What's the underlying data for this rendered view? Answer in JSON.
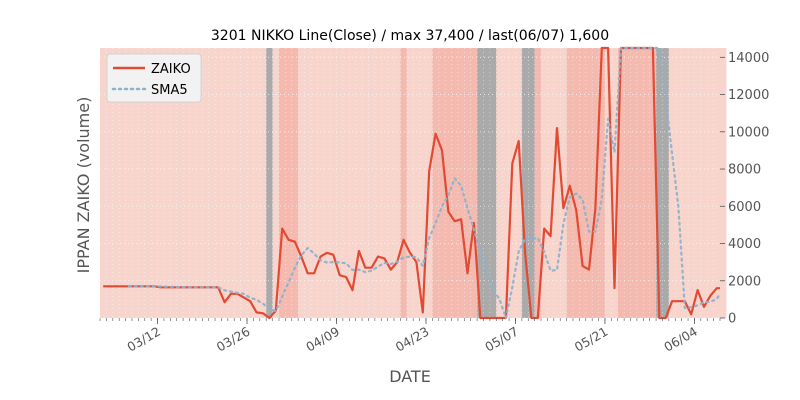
{
  "chart_data": {
    "type": "line",
    "title": "3201 NIKKO Line(Close) / max 37,400 / last(06/07) 1,600",
    "xlabel": "DATE",
    "ylabel": "IPPAN ZAIKO (volume)",
    "ylim": [
      0,
      14500
    ],
    "y_ticks": [
      0,
      2000,
      4000,
      6000,
      8000,
      10000,
      12000,
      14000
    ],
    "y_tick_labels": [
      "0",
      "2000",
      "4000",
      "6000",
      "8000",
      "10000",
      "12000",
      "14000"
    ],
    "y_axis_side": "right",
    "x_ticks": [
      {
        "label": "03/12",
        "day": 9
      },
      {
        "label": "03/26",
        "day": 23
      },
      {
        "label": "04/09",
        "day": 37
      },
      {
        "label": "04/23",
        "day": 51
      },
      {
        "label": "05/07",
        "day": 65
      },
      {
        "label": "05/21",
        "day": 79
      },
      {
        "label": "06/04",
        "day": 93
      }
    ],
    "x_start_date": "03/03",
    "x_range_days": [
      0,
      97
    ],
    "grid": true,
    "legend_position": "top-left",
    "background": "#e5e5e5",
    "series": [
      {
        "name": "ZAIKO",
        "color": "#e24a33",
        "style": "solid",
        "points": [
          [
            0.5,
            1700
          ],
          [
            1.5,
            1700
          ],
          [
            2.5,
            1700
          ],
          [
            3.5,
            1700
          ],
          [
            4.5,
            1700
          ],
          [
            5.5,
            1700
          ],
          [
            6.5,
            1700
          ],
          [
            7.5,
            1700
          ],
          [
            8.5,
            1700
          ],
          [
            9.5,
            1650
          ],
          [
            10.5,
            1650
          ],
          [
            11.5,
            1650
          ],
          [
            12.5,
            1650
          ],
          [
            13.5,
            1650
          ],
          [
            14.5,
            1650
          ],
          [
            15.5,
            1650
          ],
          [
            16.5,
            1650
          ],
          [
            17.5,
            1650
          ],
          [
            18.5,
            1650
          ],
          [
            19.5,
            850
          ],
          [
            20.5,
            1300
          ],
          [
            21.5,
            1300
          ],
          [
            22.5,
            1100
          ],
          [
            23.5,
            900
          ],
          [
            24.5,
            300
          ],
          [
            25.5,
            250
          ],
          [
            26.5,
            0
          ],
          [
            27.5,
            400
          ],
          [
            28.5,
            4800
          ],
          [
            29.5,
            4200
          ],
          [
            30.5,
            4100
          ],
          [
            31.5,
            3300
          ],
          [
            32.5,
            2400
          ],
          [
            33.5,
            2400
          ],
          [
            34.5,
            3300
          ],
          [
            35.5,
            3500
          ],
          [
            36.5,
            3400
          ],
          [
            37.5,
            2300
          ],
          [
            38.5,
            2200
          ],
          [
            39.5,
            1500
          ],
          [
            40.5,
            3600
          ],
          [
            41.5,
            2700
          ],
          [
            42.5,
            2700
          ],
          [
            43.5,
            3300
          ],
          [
            44.5,
            3200
          ],
          [
            45.5,
            2600
          ],
          [
            46.5,
            3000
          ],
          [
            47.5,
            4200
          ],
          [
            48.5,
            3500
          ],
          [
            49.5,
            3000
          ],
          [
            50.5,
            300
          ],
          [
            51.5,
            7900
          ],
          [
            52.5,
            9900
          ],
          [
            53.5,
            9000
          ],
          [
            54.5,
            5700
          ],
          [
            55.5,
            5200
          ],
          [
            56.5,
            5300
          ],
          [
            57.5,
            2400
          ],
          [
            58.5,
            5100
          ],
          [
            59.5,
            0
          ],
          [
            60.5,
            0
          ],
          [
            61.5,
            0
          ],
          [
            62.5,
            0
          ],
          [
            63.5,
            0
          ],
          [
            64.5,
            8300
          ],
          [
            65.5,
            9500
          ],
          [
            66.5,
            3500
          ],
          [
            67.5,
            0
          ],
          [
            68.5,
            0
          ],
          [
            69.5,
            4800
          ],
          [
            70.5,
            4400
          ],
          [
            71.5,
            10200
          ],
          [
            72.5,
            5900
          ],
          [
            73.5,
            7100
          ],
          [
            74.5,
            5800
          ],
          [
            75.5,
            2800
          ],
          [
            76.5,
            2600
          ],
          [
            77.5,
            5900
          ],
          [
            78.5,
            14600
          ],
          [
            79.5,
            14600
          ],
          [
            80.5,
            1600
          ],
          [
            81.5,
            14600
          ],
          [
            82.5,
            14600
          ],
          [
            83.5,
            14600
          ],
          [
            84.5,
            14600
          ],
          [
            85.5,
            14600
          ],
          [
            86.5,
            14600
          ],
          [
            87.5,
            0
          ],
          [
            88.5,
            0
          ],
          [
            89.5,
            900
          ],
          [
            90.5,
            900
          ],
          [
            91.5,
            900
          ],
          [
            92.5,
            200
          ],
          [
            93.5,
            1500
          ],
          [
            94.5,
            600
          ],
          [
            95.5,
            1200
          ],
          [
            96.5,
            1600
          ],
          [
            97.5,
            1600
          ]
        ]
      },
      {
        "name": "SMA5",
        "color": "#8eb1cc",
        "style": "dotted",
        "points": [
          [
            4.5,
            1700
          ],
          [
            5.5,
            1700
          ],
          [
            6.5,
            1700
          ],
          [
            7.5,
            1700
          ],
          [
            8.5,
            1700
          ],
          [
            9.5,
            1690
          ],
          [
            10.5,
            1680
          ],
          [
            11.5,
            1670
          ],
          [
            12.5,
            1660
          ],
          [
            13.5,
            1650
          ],
          [
            14.5,
            1650
          ],
          [
            15.5,
            1650
          ],
          [
            16.5,
            1650
          ],
          [
            17.5,
            1650
          ],
          [
            18.5,
            1650
          ],
          [
            19.5,
            1490
          ],
          [
            20.5,
            1420
          ],
          [
            21.5,
            1350
          ],
          [
            22.5,
            1300
          ],
          [
            23.5,
            1090
          ],
          [
            24.5,
            980
          ],
          [
            25.5,
            770
          ],
          [
            26.5,
            510
          ],
          [
            27.5,
            370
          ],
          [
            28.5,
            1150
          ],
          [
            29.5,
            1930
          ],
          [
            30.5,
            2700
          ],
          [
            31.5,
            3360
          ],
          [
            32.5,
            3760
          ],
          [
            33.5,
            3460
          ],
          [
            34.5,
            3100
          ],
          [
            35.5,
            2980
          ],
          [
            36.5,
            3000
          ],
          [
            37.5,
            2980
          ],
          [
            38.5,
            2940
          ],
          [
            39.5,
            2580
          ],
          [
            40.5,
            2600
          ],
          [
            41.5,
            2460
          ],
          [
            42.5,
            2540
          ],
          [
            43.5,
            2760
          ],
          [
            44.5,
            2960
          ],
          [
            45.5,
            2900
          ],
          [
            46.5,
            3020
          ],
          [
            47.5,
            3260
          ],
          [
            48.5,
            3300
          ],
          [
            49.5,
            3260
          ],
          [
            50.5,
            2800
          ],
          [
            51.5,
            4300
          ],
          [
            52.5,
            5100
          ],
          [
            53.5,
            6000
          ],
          [
            54.5,
            6600
          ],
          [
            55.5,
            7500
          ],
          [
            56.5,
            7100
          ],
          [
            57.5,
            5900
          ],
          [
            58.5,
            4740
          ],
          [
            59.5,
            3600
          ],
          [
            60.5,
            2560
          ],
          [
            61.5,
            1500
          ],
          [
            62.5,
            1020
          ],
          [
            63.5,
            0
          ],
          [
            64.5,
            1660
          ],
          [
            65.5,
            3560
          ],
          [
            66.5,
            4260
          ],
          [
            67.5,
            4260
          ],
          [
            68.5,
            4300
          ],
          [
            69.5,
            3560
          ],
          [
            70.5,
            2540
          ],
          [
            71.5,
            2580
          ],
          [
            72.5,
            5060
          ],
          [
            73.5,
            6480
          ],
          [
            74.5,
            6680
          ],
          [
            75.5,
            6360
          ],
          [
            76.5,
            4640
          ],
          [
            77.5,
            4640
          ],
          [
            78.5,
            6400
          ],
          [
            79.5,
            10700
          ],
          [
            80.5,
            8900
          ],
          [
            81.5,
            14600
          ],
          [
            82.5,
            14600
          ],
          [
            83.5,
            14600
          ],
          [
            84.5,
            14600
          ],
          [
            85.5,
            14600
          ],
          [
            86.5,
            14600
          ],
          [
            87.5,
            14600
          ],
          [
            88.5,
            11800
          ],
          [
            89.5,
            8800
          ],
          [
            90.5,
            5900
          ],
          [
            91.5,
            540
          ],
          [
            92.5,
            580
          ],
          [
            93.5,
            680
          ],
          [
            94.5,
            840
          ],
          [
            95.5,
            880
          ],
          [
            96.5,
            1020
          ],
          [
            97.5,
            1300
          ]
        ]
      }
    ],
    "shading": {
      "dark_bands": [
        [
          26,
          27
        ],
        [
          59,
          62
        ],
        [
          66,
          68
        ],
        [
          87,
          89
        ]
      ],
      "light_bands": [
        [
          0,
          27
        ],
        [
          27,
          59
        ],
        [
          62,
          66
        ],
        [
          68,
          87
        ],
        [
          89,
          98
        ]
      ],
      "strong_bands": [
        [
          28,
          31
        ],
        [
          47,
          48
        ],
        [
          52,
          59
        ],
        [
          66,
          69
        ],
        [
          73,
          79
        ],
        [
          81,
          87
        ]
      ],
      "dark_color": "#aaaaaa",
      "light_color": "#f7d4cc",
      "strong_color": "#f2b3a8"
    }
  }
}
